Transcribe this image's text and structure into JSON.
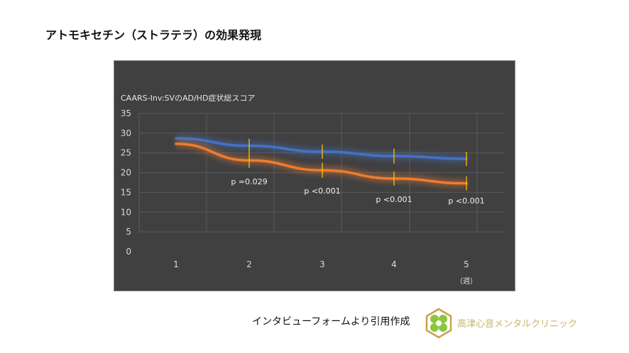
{
  "title": "アトモキセチン（ストラテラ）の効果発現",
  "source": "インタビューフォームより引用作成",
  "clinic": "高津心音メンタルクリニック",
  "colors": {
    "background": "#404040",
    "blue": "#4472c4",
    "orange": "#ed7d31",
    "errorbar": "#ffc000",
    "grid": "#5a5a5a",
    "text": "#d9d9d9"
  },
  "chart_data": {
    "type": "line",
    "title": "CAARS-Inv:SVのAD/HD症状総スコア",
    "xlabel": "（週）",
    "categories": [
      "1",
      "2",
      "3",
      "4",
      "5"
    ],
    "ylim": [
      0,
      35
    ],
    "yticks": [
      "0",
      "5",
      "10",
      "15",
      "20",
      "25",
      "30",
      "35"
    ],
    "grid": true,
    "series": [
      {
        "color": "#4472c4",
        "values": [
          28.7,
          26.8,
          25.3,
          24.2,
          23.5
        ],
        "error": [
          null,
          1.8,
          1.8,
          1.9,
          1.8
        ]
      },
      {
        "color": "#ed7d31",
        "values": [
          27.3,
          23.1,
          20.6,
          18.5,
          17.3
        ],
        "error": [
          null,
          1.9,
          1.9,
          1.8,
          1.8
        ]
      }
    ],
    "annotations": [
      {
        "x": "2",
        "text": "p =0.029"
      },
      {
        "x": "3",
        "text": "p <0.001"
      },
      {
        "x": "4",
        "text": "p <0.001"
      },
      {
        "x": "5",
        "text": "p <0.001"
      }
    ]
  }
}
